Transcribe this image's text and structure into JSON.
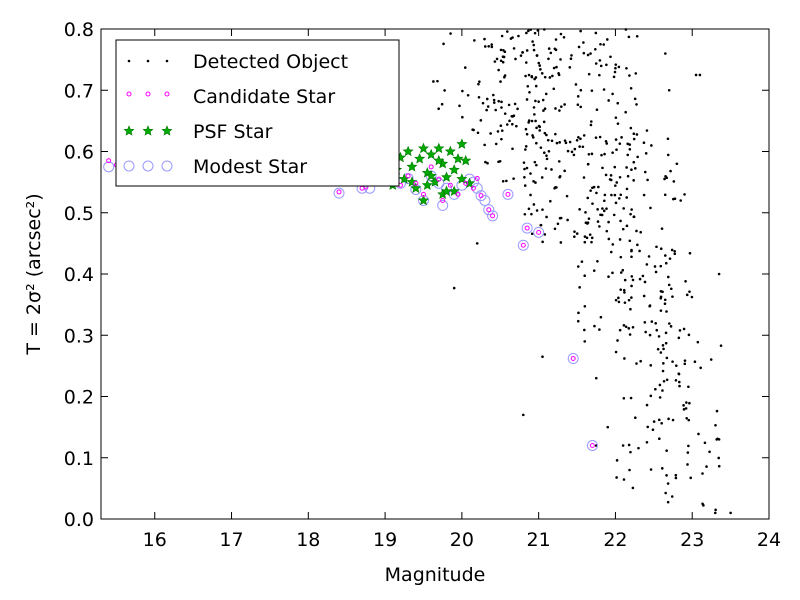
{
  "chart_data": {
    "type": "scatter",
    "title": "",
    "xlabel": "Magnitude",
    "ylabel": "T = 2σ² (arcsec²)",
    "xlim": [
      15.3,
      24.0
    ],
    "ylim": [
      0.0,
      0.8
    ],
    "xticks": [
      "16",
      "17",
      "18",
      "19",
      "20",
      "21",
      "22",
      "23",
      "24"
    ],
    "yticks": [
      "0.0",
      "0.1",
      "0.2",
      "0.3",
      "0.4",
      "0.5",
      "0.6",
      "0.7",
      "0.8"
    ],
    "grid": false,
    "legend_placement": "top-left",
    "colors": {
      "detected": "#000000",
      "candidate": "#ff00ff",
      "psf_fill": "#00aa00",
      "psf_edge": "#007700",
      "modest": "#9999ff"
    },
    "series": [
      {
        "name": "Detected Object",
        "marker": "dot",
        "generated": {
          "description_rule": "dense cloud; T rises with magnitude",
          "clusters": [
            {
              "n": 120,
              "x": [
                20.2,
                21.3
              ],
              "y": [
                0.55,
                0.8
              ]
            },
            {
              "n": 180,
              "x": [
                20.8,
                22.3
              ],
              "y": [
                0.45,
                0.8
              ]
            },
            {
              "n": 120,
              "x": [
                21.5,
                22.8
              ],
              "y": [
                0.3,
                0.65
              ]
            },
            {
              "n": 90,
              "x": [
                22.0,
                23.0
              ],
              "y": [
                0.05,
                0.45
              ]
            },
            {
              "n": 40,
              "x": [
                22.6,
                23.4
              ],
              "y": [
                0.0,
                0.3
              ]
            },
            {
              "n": 25,
              "x": [
                19.6,
                20.6
              ],
              "y": [
                0.62,
                0.8
              ]
            }
          ]
        },
        "points": [
          [
            19.9,
            0.377
          ],
          [
            20.2,
            0.45
          ],
          [
            20.8,
            0.17
          ],
          [
            21.05,
            0.265
          ],
          [
            21.75,
            0.12
          ],
          [
            23.1,
            0.725
          ],
          [
            23.05,
            0.725
          ],
          [
            23.35,
            0.4
          ],
          [
            23.5,
            0.01
          ],
          [
            23.3,
            0.01
          ],
          [
            23.35,
            0.13
          ],
          [
            22.85,
            0.52
          ],
          [
            22.9,
            0.53
          ],
          [
            22.8,
            0.58
          ],
          [
            22.65,
            0.76
          ],
          [
            22.7,
            0.7
          ],
          [
            21.6,
            0.29
          ],
          [
            21.75,
            0.23
          ],
          [
            21.9,
            0.15
          ],
          [
            22.1,
            0.12
          ]
        ]
      },
      {
        "name": "Candidate Star",
        "marker": "small-circle",
        "points": [
          [
            15.4,
            0.585
          ],
          [
            15.5,
            0.578
          ],
          [
            18.7,
            0.54
          ],
          [
            18.75,
            0.542
          ],
          [
            19.2,
            0.545
          ],
          [
            19.3,
            0.56
          ],
          [
            19.4,
            0.548
          ],
          [
            19.5,
            0.53
          ],
          [
            19.6,
            0.575
          ],
          [
            19.7,
            0.555
          ],
          [
            19.75,
            0.52
          ],
          [
            19.85,
            0.545
          ],
          [
            19.95,
            0.53
          ],
          [
            20.05,
            0.548
          ],
          [
            20.15,
            0.54
          ],
          [
            20.2,
            0.556
          ],
          [
            20.25,
            0.528
          ],
          [
            20.35,
            0.505
          ],
          [
            20.4,
            0.495
          ],
          [
            20.8,
            0.447
          ],
          [
            20.85,
            0.475
          ],
          [
            21.0,
            0.468
          ],
          [
            21.45,
            0.262
          ],
          [
            21.7,
            0.12
          ],
          [
            18.4,
            0.534
          ],
          [
            18.5,
            0.55
          ],
          [
            20.6,
            0.53
          ]
        ]
      },
      {
        "name": "PSF Star",
        "marker": "star",
        "points": [
          [
            19.1,
            0.545
          ],
          [
            19.15,
            0.57
          ],
          [
            19.2,
            0.59
          ],
          [
            19.25,
            0.555
          ],
          [
            19.3,
            0.6
          ],
          [
            19.35,
            0.575
          ],
          [
            19.4,
            0.54
          ],
          [
            19.45,
            0.588
          ],
          [
            19.5,
            0.605
          ],
          [
            19.5,
            0.52
          ],
          [
            19.55,
            0.565
          ],
          [
            19.6,
            0.595
          ],
          [
            19.65,
            0.55
          ],
          [
            19.7,
            0.605
          ],
          [
            19.75,
            0.58
          ],
          [
            19.75,
            0.53
          ],
          [
            19.8,
            0.558
          ],
          [
            19.85,
            0.6
          ],
          [
            19.9,
            0.57
          ],
          [
            19.9,
            0.535
          ],
          [
            19.95,
            0.588
          ],
          [
            20.0,
            0.612
          ],
          [
            20.0,
            0.555
          ],
          [
            20.05,
            0.585
          ],
          [
            20.1,
            0.548
          ],
          [
            19.6,
            0.56
          ],
          [
            19.35,
            0.55
          ],
          [
            19.7,
            0.585
          ],
          [
            19.55,
            0.545
          ],
          [
            19.8,
            0.535
          ]
        ]
      },
      {
        "name": "Modest Star",
        "marker": "open-circle",
        "points": [
          [
            15.4,
            0.575
          ],
          [
            15.6,
            0.57
          ],
          [
            15.95,
            0.578
          ],
          [
            16.2,
            0.576
          ],
          [
            18.4,
            0.532
          ],
          [
            18.7,
            0.54
          ],
          [
            18.8,
            0.54
          ],
          [
            19.2,
            0.548
          ],
          [
            19.3,
            0.556
          ],
          [
            19.4,
            0.538
          ],
          [
            19.5,
            0.52
          ],
          [
            19.6,
            0.56
          ],
          [
            19.7,
            0.548
          ],
          [
            19.75,
            0.512
          ],
          [
            19.8,
            0.54
          ],
          [
            19.9,
            0.53
          ],
          [
            20.0,
            0.545
          ],
          [
            20.1,
            0.555
          ],
          [
            20.15,
            0.55
          ],
          [
            20.2,
            0.54
          ],
          [
            20.25,
            0.528
          ],
          [
            20.3,
            0.52
          ],
          [
            20.35,
            0.505
          ],
          [
            20.4,
            0.495
          ],
          [
            20.6,
            0.53
          ],
          [
            20.8,
            0.447
          ],
          [
            20.85,
            0.475
          ],
          [
            21.0,
            0.468
          ],
          [
            21.45,
            0.262
          ],
          [
            21.7,
            0.12
          ]
        ]
      }
    ]
  }
}
